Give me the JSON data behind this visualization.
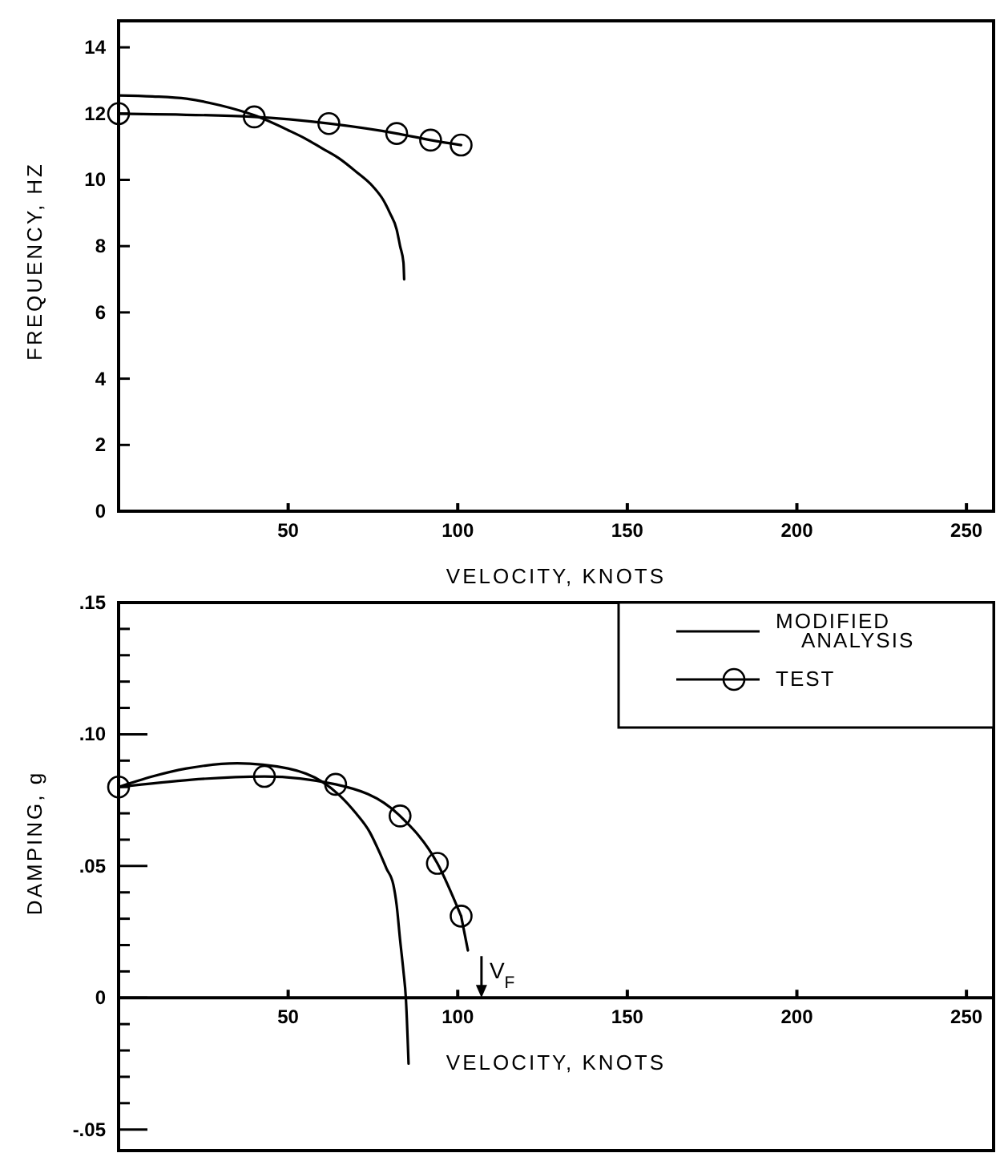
{
  "chart_data": [
    {
      "type": "line",
      "xlabel": "VELOCITY, KNOTS",
      "ylabel": "FREQUENCY, HZ",
      "xlim": [
        0,
        258
      ],
      "ylim": [
        0,
        14.8
      ],
      "xticks": [
        50,
        100,
        150,
        200,
        250
      ],
      "yticks": [
        0,
        2,
        4,
        6,
        8,
        10,
        12,
        14
      ],
      "grid": false,
      "legend": false,
      "series": [
        {
          "color": "#000000",
          "line_style": "solid",
          "marker": "none",
          "x": [
            0,
            10,
            20,
            30,
            40,
            50,
            55,
            60,
            65,
            70,
            75,
            78,
            80,
            82,
            83,
            84,
            84.2
          ],
          "values": [
            12.55,
            12.52,
            12.45,
            12.25,
            11.95,
            11.5,
            11.25,
            10.95,
            10.65,
            10.25,
            9.8,
            9.4,
            9.0,
            8.5,
            8.0,
            7.5,
            7.0
          ]
        },
        {
          "color": "#000000",
          "line_style": "solid",
          "marker": "circle",
          "x": [
            0,
            40,
            62,
            82,
            92,
            101
          ],
          "values": [
            12.0,
            11.9,
            11.7,
            11.4,
            11.2,
            11.05
          ]
        }
      ]
    },
    {
      "type": "line",
      "xlabel": "VELOCITY, KNOTS",
      "ylabel": "DAMPING, g",
      "xlim": [
        0,
        258
      ],
      "ylim": [
        -0.058,
        0.15
      ],
      "xticks": [
        50,
        100,
        150,
        200,
        250
      ],
      "yticks": [
        {
          "value": 0.15,
          "label": ".15"
        },
        {
          "value": 0.14,
          "label": null
        },
        {
          "value": 0.13,
          "label": null
        },
        {
          "value": 0.12,
          "label": null
        },
        {
          "value": 0.11,
          "label": null
        },
        {
          "value": 0.1,
          "label": ".10"
        },
        {
          "value": 0.09,
          "label": null
        },
        {
          "value": 0.08,
          "label": null
        },
        {
          "value": 0.07,
          "label": null
        },
        {
          "value": 0.06,
          "label": null
        },
        {
          "value": 0.05,
          "label": ".05"
        },
        {
          "value": 0.04,
          "label": null
        },
        {
          "value": 0.03,
          "label": null
        },
        {
          "value": 0.02,
          "label": null
        },
        {
          "value": 0.01,
          "label": null
        },
        {
          "value": 0,
          "label": "0"
        },
        {
          "value": -0.01,
          "label": null
        },
        {
          "value": -0.02,
          "label": null
        },
        {
          "value": -0.03,
          "label": null
        },
        {
          "value": -0.04,
          "label": null
        },
        {
          "value": -0.05,
          "label": "-.05"
        }
      ],
      "grid": false,
      "legend": "top right",
      "ref_lines": [
        {
          "axis": "x",
          "value": 107,
          "label": "V$_{F}$"
        }
      ],
      "series": [
        {
          "name": "MODIFIED ANALYSIS",
          "color": "#000000",
          "line_style": "solid",
          "marker": "none",
          "x": [
            0,
            10,
            20,
            35,
            50,
            60,
            65,
            70,
            74,
            77,
            79,
            81,
            82,
            83,
            84,
            84.7,
            85.5
          ],
          "values": [
            0.08,
            0.084,
            0.087,
            0.089,
            0.087,
            0.082,
            0.077,
            0.07,
            0.063,
            0.055,
            0.049,
            0.043,
            0.035,
            0.022,
            0.01,
            0,
            -0.025
          ]
        },
        {
          "name": "TEST",
          "color": "#000000",
          "line_style": "solid",
          "marker": "circle",
          "x": [
            0,
            43,
            64,
            83,
            94,
            101
          ],
          "values": [
            0.08,
            0.084,
            0.081,
            0.069,
            0.051,
            0.031
          ]
        },
        {
          "color": "#000000",
          "line_style": "solid",
          "marker": "none",
          "x": [
            101,
            103
          ],
          "values": [
            0.031,
            0.018
          ]
        }
      ]
    }
  ]
}
